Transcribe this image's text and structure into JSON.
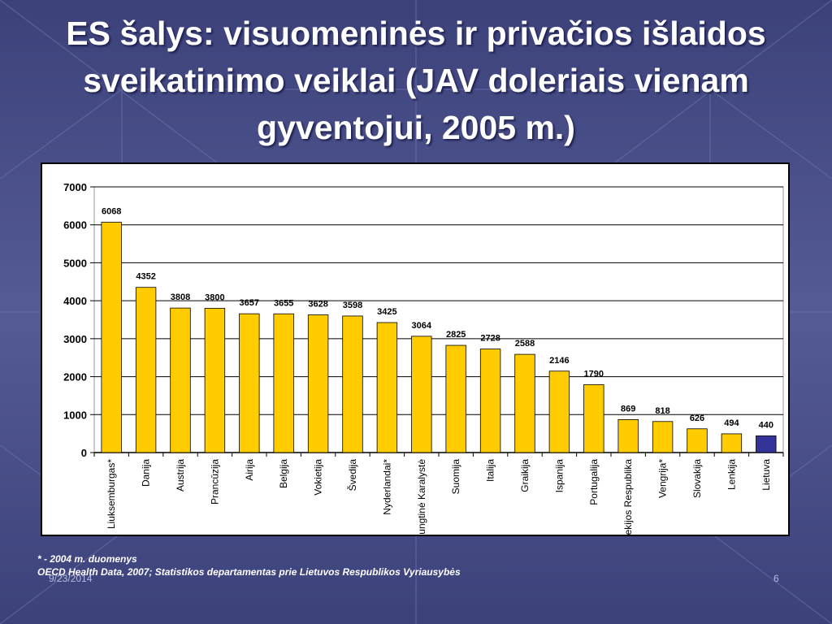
{
  "slide": {
    "title": "ES šalys: visuomeninės ir privačios išlaidos sveikatinimo veiklai (JAV doleriais vienam gyventojui, 2005 m.)",
    "footnote_1": "* - 2004 m. duomenys",
    "footnote_2": "OECD Health Data, 2007; Statistikos departamentas prie Lietuvos Respublikos Vyriausybės",
    "date": "9/23/2014",
    "page_number": "6"
  },
  "colors": {
    "background": "#4a4f86",
    "bar": "#ffcc00",
    "bar_highlight": "#333399",
    "bar_outline": "#000000"
  },
  "chart_data": {
    "type": "bar",
    "title": "",
    "xlabel": "",
    "ylabel": "",
    "ylim": [
      0,
      7000
    ],
    "yticks": [
      0,
      1000,
      2000,
      3000,
      4000,
      5000,
      6000,
      7000
    ],
    "grid": true,
    "legend": "none",
    "highlight_index": 19,
    "categories": [
      "Liuksemburgas*",
      "Danija",
      "Austrija",
      "Prancūzija",
      "Airija",
      "Belgija",
      "Vokietija",
      "Švedija",
      "Nyderlandai*",
      "Jungtinė Karalystė",
      "Suomija",
      "Italija",
      "Graikija",
      "Ispanija",
      "Portugalija",
      "Čekijos Respublika",
      "Vengrija*",
      "Slovakija",
      "Lenkija",
      "Lietuva"
    ],
    "values": [
      6068,
      4352,
      3808,
      3800,
      3657,
      3655,
      3628,
      3598,
      3425,
      3064,
      2825,
      2728,
      2588,
      2146,
      1790,
      869,
      818,
      626,
      494,
      440
    ]
  }
}
